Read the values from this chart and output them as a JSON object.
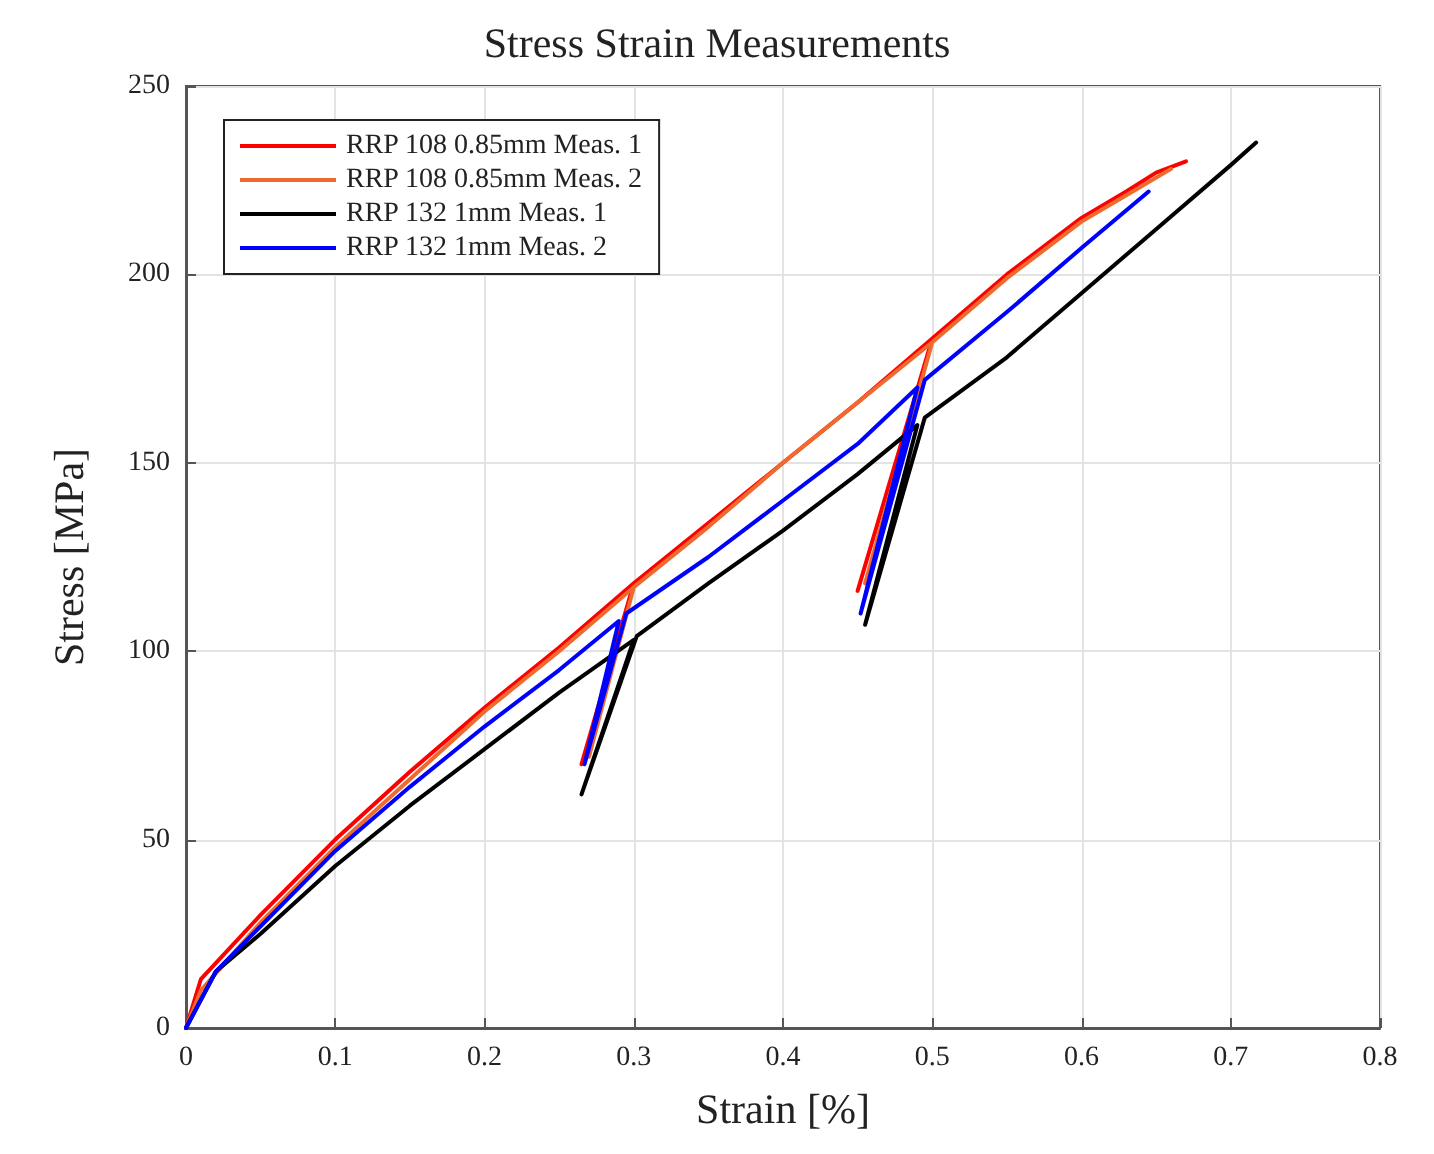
{
  "chart_data": {
    "type": "line",
    "title": "Stress Strain Measurements",
    "xlabel": "Strain [%]",
    "ylabel": "Stress [MPa]",
    "xlim": [
      0,
      0.8
    ],
    "xticks": [
      0,
      0.1,
      0.2,
      0.3,
      0.4,
      0.5,
      0.6,
      0.7,
      0.8
    ],
    "ylim": [
      0,
      250
    ],
    "yticks": [
      0,
      50,
      100,
      150,
      200,
      250
    ],
    "grid": true,
    "legend": "top left",
    "marker": "none",
    "line_style": "solid",
    "series": [
      {
        "name": "RRP 108 0.85mm Meas. 1",
        "color": "#ff0000",
        "x": [
          0,
          0.01,
          0.05,
          0.1,
          0.15,
          0.2,
          0.25,
          0.3,
          0.265,
          0.3,
          0.35,
          0.4,
          0.45,
          0.5,
          0.45,
          0.5,
          0.55,
          0.6,
          0.63,
          0.65,
          0.67
        ],
        "values": [
          0,
          13,
          30,
          50,
          68,
          85,
          101,
          118,
          70,
          118,
          134,
          150,
          166,
          183,
          116,
          183,
          200,
          215,
          222,
          227,
          230
        ]
      },
      {
        "name": "RRP 108 0.85mm Meas. 2",
        "color": "#ee6a2e",
        "x": [
          0,
          0.01,
          0.05,
          0.1,
          0.15,
          0.2,
          0.25,
          0.3,
          0.27,
          0.3,
          0.35,
          0.4,
          0.45,
          0.5,
          0.455,
          0.5,
          0.55,
          0.6,
          0.63,
          0.66
        ],
        "values": [
          0,
          10,
          28,
          48,
          66,
          84,
          100,
          117,
          72,
          117,
          133,
          150,
          166,
          182,
          118,
          182,
          199,
          214,
          221,
          228
        ]
      },
      {
        "name": "RRP 132 1mm Meas. 1",
        "color": "#000000",
        "x": [
          0,
          0.02,
          0.05,
          0.1,
          0.15,
          0.2,
          0.25,
          0.3,
          0.265,
          0.302,
          0.35,
          0.4,
          0.45,
          0.49,
          0.455,
          0.495,
          0.55,
          0.6,
          0.65,
          0.7,
          0.717
        ],
        "values": [
          0,
          15,
          25,
          43,
          59,
          74,
          89,
          103,
          62,
          104,
          118,
          132,
          147,
          160,
          107,
          162,
          178,
          195,
          212,
          229,
          235
        ]
      },
      {
        "name": "RRP 132 1mm Meas. 2",
        "color": "#0000ff",
        "x": [
          0,
          0.02,
          0.05,
          0.1,
          0.15,
          0.2,
          0.25,
          0.29,
          0.267,
          0.295,
          0.35,
          0.4,
          0.45,
          0.49,
          0.452,
          0.495,
          0.55,
          0.6,
          0.645
        ],
        "values": [
          0,
          15,
          27,
          47,
          64,
          80,
          95,
          108,
          70,
          110,
          125,
          140,
          155,
          170,
          110,
          172,
          190,
          207,
          222
        ]
      }
    ]
  }
}
